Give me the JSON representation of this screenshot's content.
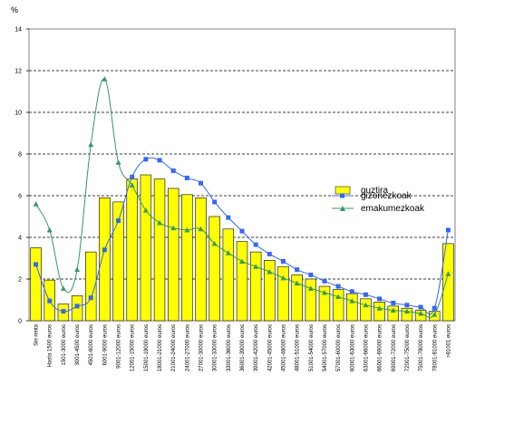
{
  "chart_data": {
    "type": "bar",
    "ylabel": "%",
    "ylim": [
      0,
      14
    ],
    "yticks": [
      0,
      2,
      4,
      6,
      8,
      10,
      12,
      14
    ],
    "grid": true,
    "legend_position": "right",
    "categories": [
      "Sin renta",
      "Hasta 1500 euros",
      "1501-3000 euros",
      "3001-4500 euros",
      "4501-6000 euros",
      "6001-9000 euros",
      "9001-12000 euros",
      "12001-15000 euros",
      "15001-18000 euros",
      "18001-21000 euros",
      "21001-24000 euros",
      "24001-27000 euros",
      "27001-30000 euros",
      "30001-33000 euros",
      "33001-36000 euros",
      "36001-39000 euros",
      "39001-42000 euros",
      "42001-45000 euros",
      "45001-48000 euros",
      "48001-51000 euros",
      "51001-54000 euros",
      "54001-57000 euros",
      "57001-60000 euros",
      "60001-63000 euros",
      "63001-66000 euros",
      "66001-69000 euros",
      "69001-72000 euros",
      "72001-75000 euros",
      "75001-78000 euros",
      "78001-81000 euros",
      ">81001 euros"
    ],
    "series": [
      {
        "name": "guztira",
        "kind": "bar",
        "color": "#ffff00",
        "values": [
          3.5,
          1.95,
          0.8,
          1.2,
          3.3,
          5.9,
          5.7,
          6.8,
          7.0,
          6.8,
          6.35,
          6.05,
          5.9,
          5.0,
          4.4,
          3.8,
          3.3,
          2.9,
          2.6,
          2.2,
          2.0,
          1.65,
          1.5,
          1.3,
          1.05,
          0.9,
          0.7,
          0.6,
          0.5,
          0.45,
          3.7
        ]
      },
      {
        "name": "gizonezkoak",
        "kind": "line",
        "color": "#3366ff",
        "marker": "square",
        "values": [
          2.7,
          0.95,
          0.45,
          0.7,
          1.1,
          3.4,
          4.8,
          6.9,
          7.75,
          7.7,
          7.2,
          6.85,
          6.6,
          5.7,
          4.95,
          4.3,
          3.65,
          3.2,
          2.85,
          2.45,
          2.2,
          1.9,
          1.65,
          1.4,
          1.25,
          1.05,
          0.85,
          0.75,
          0.65,
          0.6,
          4.35
        ]
      },
      {
        "name": "emakumezkoak",
        "kind": "line",
        "color": "#339966",
        "marker": "triangle",
        "values": [
          5.6,
          4.35,
          1.55,
          2.45,
          8.45,
          11.6,
          7.6,
          6.5,
          5.3,
          4.7,
          4.45,
          4.35,
          4.4,
          3.7,
          3.25,
          2.85,
          2.6,
          2.35,
          2.05,
          1.8,
          1.55,
          1.35,
          1.15,
          0.95,
          0.75,
          0.6,
          0.5,
          0.45,
          0.35,
          0.3,
          2.25
        ]
      }
    ]
  }
}
